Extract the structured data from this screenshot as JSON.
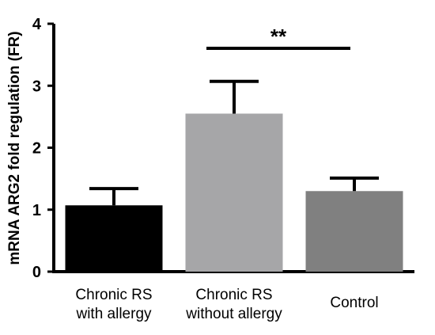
{
  "chart_data": {
    "type": "bar",
    "categories": [
      [
        "Chronic RS",
        "with allergy"
      ],
      [
        "Chronic RS",
        "without allergy"
      ],
      [
        "Control"
      ]
    ],
    "values": [
      1.07,
      2.55,
      1.3
    ],
    "error_upper": [
      1.34,
      3.07,
      1.51
    ],
    "colors": [
      "#000000",
      "#a6a6a8",
      "#808080"
    ],
    "ylabel": "mRNA ARG2 fold regulation (FR)",
    "xlabel": "",
    "ylim": [
      0,
      4
    ],
    "yticks": [
      0,
      1,
      2,
      3,
      4
    ],
    "significance": {
      "between": [
        1,
        2
      ],
      "label": "**"
    },
    "grid": false
  }
}
